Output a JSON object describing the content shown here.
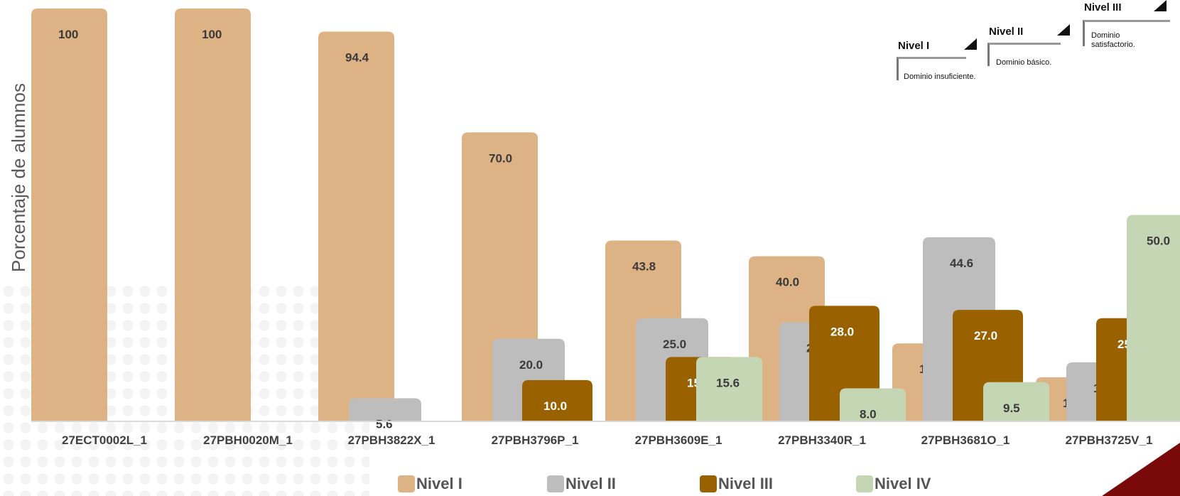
{
  "chart_data": {
    "type": "bar",
    "ylabel": "Porcentaje de alumnos",
    "categories": [
      "27ECT0002L_1",
      "27PBH0020M_1",
      "27PBH3822X_1",
      "27PBH3796P_1",
      "27PBH3609E_1",
      "27PBH3340R_1",
      "27PBH3681O_1",
      "27PBH3725V_1"
    ],
    "ylim": [
      0,
      100
    ],
    "grid": false,
    "legend_position": "bottom",
    "series": [
      {
        "name": "Nivel I",
        "color": "#DDB285",
        "values": [
          100,
          100,
          94.4,
          70.0,
          43.8,
          40.0,
          18.9,
          10.7
        ],
        "labels": [
          "100",
          "100",
          "94.4",
          "70.0",
          "43.8",
          "40.0",
          "18.9",
          "10.7"
        ]
      },
      {
        "name": "Nivel II",
        "color": "#BDBDBD",
        "values": [
          null,
          null,
          5.6,
          20.0,
          25.0,
          24.0,
          44.6,
          14.3
        ],
        "labels": [
          "",
          "",
          "5.6",
          "20.0",
          "25.0",
          "24.0",
          "44.6",
          "14.3"
        ]
      },
      {
        "name": "Nivel III",
        "color": "#996100",
        "values": [
          null,
          null,
          null,
          10.0,
          15.6,
          28.0,
          27.0,
          25.0
        ],
        "labels": [
          "",
          "",
          "",
          "10.0",
          "15.6",
          "28.0",
          "27.0",
          "25.0"
        ]
      },
      {
        "name": "Nivel IV",
        "color": "#C5D6B5",
        "values": [
          null,
          null,
          null,
          null,
          15.6,
          8.0,
          9.5,
          50.0
        ],
        "labels": [
          "",
          "",
          "",
          "",
          "15.6",
          "8.0",
          "9.5",
          "50.0"
        ]
      }
    ]
  },
  "reference_legend": {
    "items": [
      {
        "level": "Nivel I",
        "description": "Dominio insuficiente."
      },
      {
        "level": "Nivel II",
        "description": "Dominio básico."
      },
      {
        "level": "Nivel III",
        "description": "Dominio satisfactorio."
      }
    ]
  },
  "legend": {
    "items": [
      {
        "label": "Nivel I",
        "color": "#DDB285"
      },
      {
        "label": "Nivel II",
        "color": "#BDBDBD"
      },
      {
        "label": "Nivel III",
        "color": "#996100"
      },
      {
        "label": "Nivel IV",
        "color": "#C5D6B5"
      }
    ]
  },
  "decoration": {
    "corner_color": "#7A0A0A"
  }
}
